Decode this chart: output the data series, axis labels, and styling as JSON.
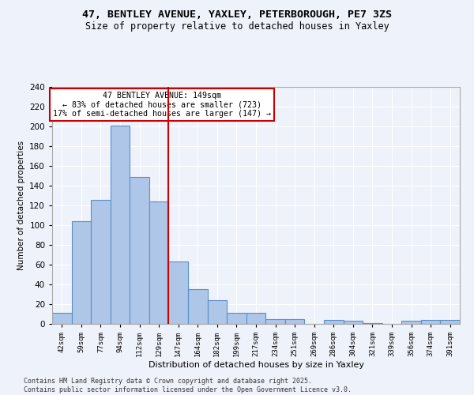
{
  "title_line1": "47, BENTLEY AVENUE, YAXLEY, PETERBOROUGH, PE7 3ZS",
  "title_line2": "Size of property relative to detached houses in Yaxley",
  "xlabel": "Distribution of detached houses by size in Yaxley",
  "ylabel": "Number of detached properties",
  "categories": [
    "42sqm",
    "59sqm",
    "77sqm",
    "94sqm",
    "112sqm",
    "129sqm",
    "147sqm",
    "164sqm",
    "182sqm",
    "199sqm",
    "217sqm",
    "234sqm",
    "251sqm",
    "269sqm",
    "286sqm",
    "304sqm",
    "321sqm",
    "339sqm",
    "356sqm",
    "374sqm",
    "391sqm"
  ],
  "values": [
    11,
    104,
    126,
    201,
    149,
    124,
    63,
    35,
    24,
    11,
    11,
    5,
    5,
    0,
    4,
    3,
    1,
    0,
    3,
    4,
    4
  ],
  "bar_color": "#aec6e8",
  "bar_edge_color": "#5b8fc9",
  "highlight_index": 6,
  "highlight_color_red": "#cc0000",
  "annotation_line1": "47 BENTLEY AVENUE: 149sqm",
  "annotation_line2": "← 83% of detached houses are smaller (723)",
  "annotation_line3": "17% of semi-detached houses are larger (147) →",
  "annotation_box_color": "#ffffff",
  "annotation_box_edge": "#cc0000",
  "ylim": [
    0,
    240
  ],
  "yticks": [
    0,
    20,
    40,
    60,
    80,
    100,
    120,
    140,
    160,
    180,
    200,
    220,
    240
  ],
  "footer": "Contains HM Land Registry data © Crown copyright and database right 2025.\nContains public sector information licensed under the Open Government Licence v3.0.",
  "background_color": "#eef2fb",
  "grid_color": "#ffffff"
}
